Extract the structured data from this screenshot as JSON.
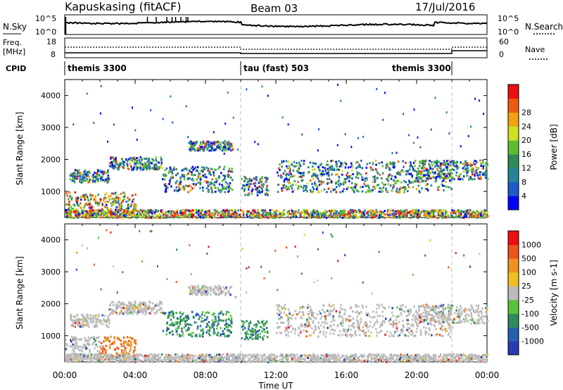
{
  "header": {
    "site": "Kapuskasing (fitACF)",
    "beam": "Beam 03",
    "date": "17/Jul/2016"
  },
  "strips": {
    "nsky_label": "N.Sky",
    "nsky_ticks": [
      "10^5",
      "10^0"
    ],
    "nsearch_label": "N.Search",
    "nsearch_ticks": [
      "10^5",
      "10^0"
    ],
    "freq_label_1": "Freq.",
    "freq_label_2": "[MHz]",
    "freq_ticks": [
      "18",
      "8"
    ],
    "nave_label": "Nave",
    "nave_ticks": [
      "60",
      "0"
    ],
    "cpid_label": "CPID",
    "cpid_segments": [
      {
        "start_hour": 0,
        "end_hour": 10,
        "label": "themis 3300"
      },
      {
        "start_hour": 10,
        "end_hour": 22,
        "label": "tau (fast) 503"
      },
      {
        "start_hour": 22,
        "end_hour": 24,
        "label": "themis 3300"
      }
    ]
  },
  "chart_data": [
    {
      "type": "heatmap",
      "name": "power",
      "ylabel": "Slant Range [km]",
      "ylim": [
        180,
        4500
      ],
      "y_ticks": [
        "1000",
        "2000",
        "3000",
        "4000"
      ],
      "x_ticks": [
        "00:00",
        "04:00",
        "08:00",
        "12:00",
        "16:00",
        "20:00",
        "00:00"
      ],
      "xlim_hours": [
        0,
        24
      ],
      "colorbar": {
        "label": "Power [dB]",
        "ticks": [
          "4",
          "8",
          "12",
          "16",
          "20",
          "24",
          "28"
        ],
        "colors": [
          "#0000ff",
          "#1e5bc8",
          "#26849a",
          "#2f8a5a",
          "#5fbd2d",
          "#cfe01e",
          "#f5a210",
          "#ef5a10",
          "#ee1010"
        ]
      },
      "echo_bands": [
        {
          "t": [
            0.2,
            2.5
          ],
          "range": [
            1300,
            1700
          ]
        },
        {
          "t": [
            2.5,
            5.5
          ],
          "range": [
            1700,
            2100
          ]
        },
        {
          "t": [
            0.0,
            4.0
          ],
          "range": [
            300,
            1000
          ]
        },
        {
          "t": [
            5.5,
            9.5
          ],
          "range": [
            1000,
            1800
          ]
        },
        {
          "t": [
            7.0,
            9.5
          ],
          "range": [
            2300,
            2600
          ]
        },
        {
          "t": [
            10.0,
            11.5
          ],
          "range": [
            900,
            1500
          ]
        },
        {
          "t": [
            12.0,
            22.0
          ],
          "range": [
            1000,
            2000
          ]
        },
        {
          "t": [
            20.0,
            24.0
          ],
          "range": [
            1400,
            2000
          ]
        },
        {
          "t": [
            0.0,
            24.0
          ],
          "range": [
            200,
            450
          ]
        }
      ]
    },
    {
      "type": "heatmap",
      "name": "velocity",
      "xlabel": "Time UT",
      "ylabel": "Slant Range [km]",
      "ylim": [
        180,
        4500
      ],
      "y_ticks": [
        "1000",
        "2000",
        "3000",
        "4000"
      ],
      "x_ticks": [
        "00:00",
        "04:00",
        "08:00",
        "12:00",
        "16:00",
        "20:00",
        "00:00"
      ],
      "xlim_hours": [
        0,
        24
      ],
      "colorbar": {
        "label": "Velocity [m s-1]",
        "ticks": [
          "1000",
          "500",
          "100",
          "25",
          "-25",
          "-100",
          "-500",
          "-1000"
        ],
        "colors": [
          "#2a3ab4",
          "#2460b0",
          "#2e8a5c",
          "#5ac23a",
          "#bcbcbc",
          "#f0c020",
          "#f09020",
          "#ee5518",
          "#ee1010"
        ]
      }
    }
  ]
}
